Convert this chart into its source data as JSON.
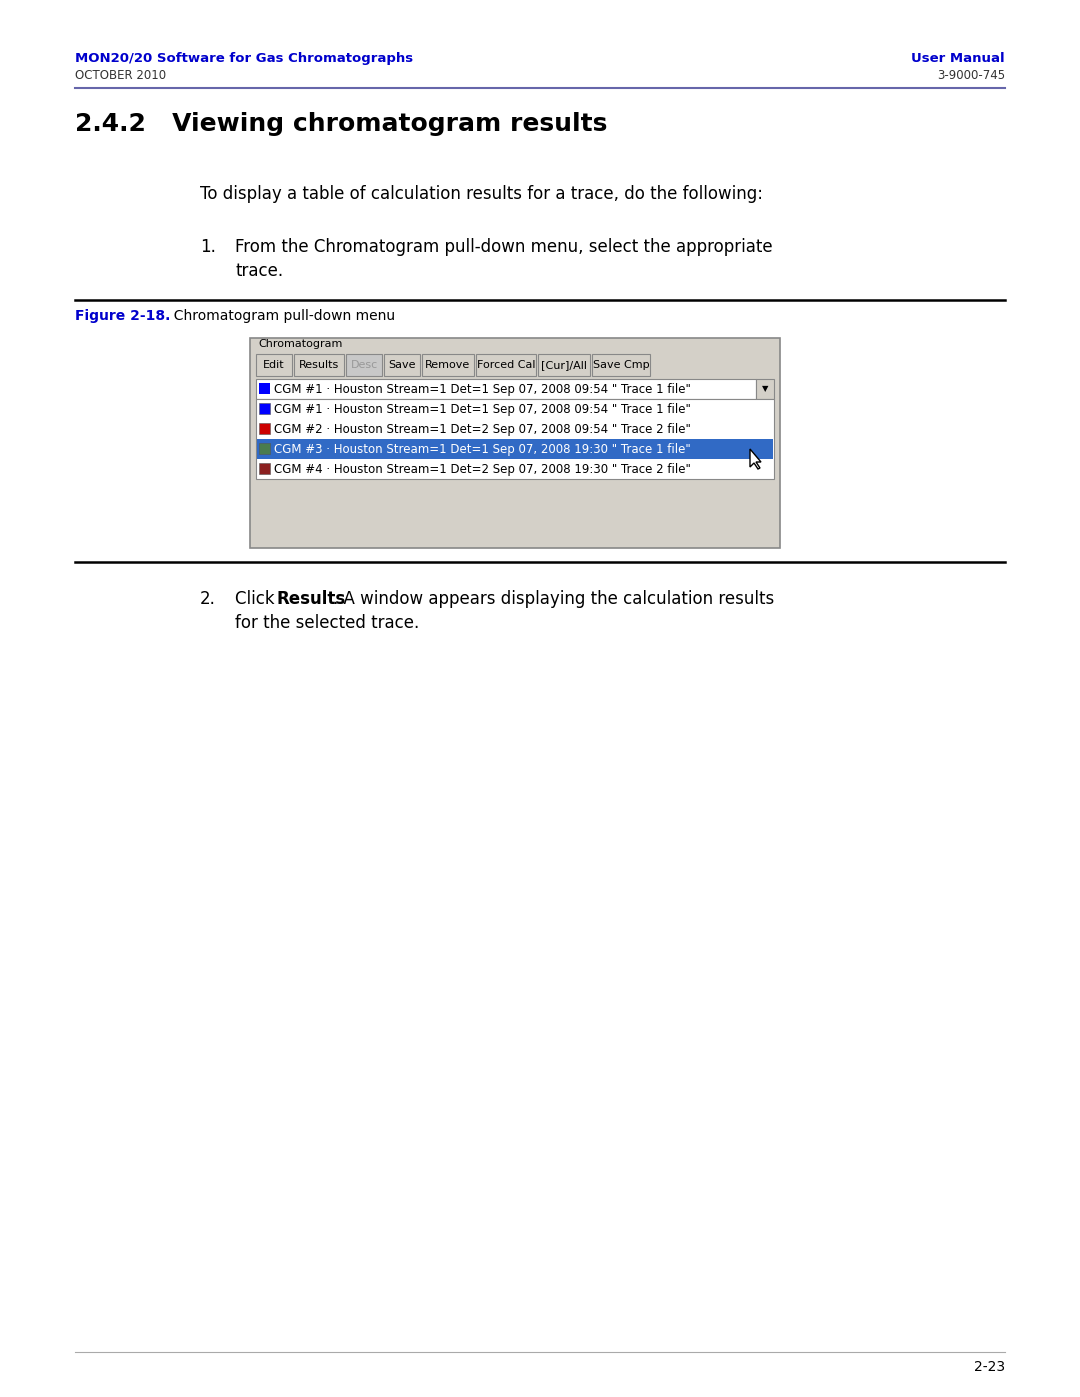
{
  "page_bg": "#ffffff",
  "header_left_line1": "MON20/20 Software for Gas Chromatographs",
  "header_left_line2": "OCTOBER 2010",
  "header_right_line1": "User Manual",
  "header_right_line2": "3-9000-745",
  "header_color": "#0000cc",
  "header_text_color_black": "#333333",
  "section_title": "2.4.2   Viewing chromatogram results",
  "body_text1": "To display a table of calculation results for a trace, do the following:",
  "step1_num": "1.",
  "step1_text_line1": "From the Chromatogram pull-down menu, select the appropriate",
  "step1_text_line2": "trace.",
  "figure_label": "Figure 2-18.",
  "figure_caption": "  Chromatogram pull-down menu",
  "figure_label_color": "#0000cc",
  "step2_num": "2.",
  "step2_pre": "Click ",
  "step2_bold": "Results",
  "step2_post": ". A window appears displaying the calculation results",
  "step2_line2": "for the selected trace.",
  "footer_page": "2-23",
  "panel_bg": "#d4d0c8",
  "panel_title": "Chromatogram",
  "panel_border": "#888888",
  "buttons": [
    "Edit",
    "Results",
    "Desc",
    "Save",
    "Remove",
    "Forced Cal",
    "[Cur]/All",
    "Save Cmp"
  ],
  "button_disabled": "Desc",
  "dropdown_text": "CGM #1 · Houston Stream=1 Det=1 Sep 07, 2008 09:54 \" Trace 1 file\"",
  "dropdown_color": "#0000ff",
  "list_items": [
    {
      "color": "#0000ff",
      "text": "CGM #1 · Houston Stream=1 Det=1 Sep 07, 2008 09:54 \" Trace 1 file\"",
      "selected": false
    },
    {
      "color": "#cc0000",
      "text": "CGM #2 · Houston Stream=1 Det=2 Sep 07, 2008 09:54 \" Trace 2 file\"",
      "selected": false
    },
    {
      "color": "#4a7c4e",
      "text": "CGM #3 · Houston Stream=1 Det=1 Sep 07, 2008 19:30 \" Trace 1 file\"",
      "selected": true
    },
    {
      "color": "#8b2020",
      "text": "CGM #4 · Houston Stream=1 Det=2 Sep 07, 2008 19:30 \" Trace 2 file\"",
      "selected": false
    }
  ],
  "selected_bg": "#316ac5",
  "selected_fg": "#ffffff",
  "header_line_color": "#6666aa"
}
